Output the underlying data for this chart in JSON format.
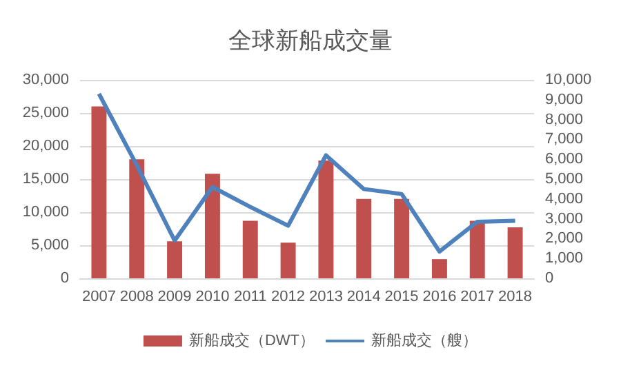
{
  "chart_data": {
    "type": "bar",
    "title": "全球新船成交量",
    "categories": [
      "2007",
      "2008",
      "2009",
      "2010",
      "2011",
      "2012",
      "2013",
      "2014",
      "2015",
      "2016",
      "2017",
      "2018"
    ],
    "series": [
      {
        "name": "新船成交（DWT）",
        "color": "#c0504d",
        "values": [
          26000,
          18000,
          5600,
          15800,
          8700,
          5400,
          17800,
          12000,
          12000,
          2900,
          8700,
          7700
        ]
      },
      {
        "name": "新船成交（艘）",
        "type": "line",
        "axis": "y2",
        "color": "#4f81bd",
        "values": [
          9300,
          5700,
          1900,
          4600,
          3600,
          2650,
          6200,
          4500,
          4250,
          1350,
          2850,
          2900
        ]
      }
    ],
    "ylim": [
      0,
      30000
    ],
    "yticks": [
      0,
      {
        "value": 5000,
        "label": "5,000"
      },
      {
        "value": 10000,
        "label": "10,000"
      },
      {
        "value": 15000,
        "label": "15,000"
      },
      {
        "value": 20000,
        "label": "20,000"
      },
      {
        "value": 25000,
        "label": "25,000"
      },
      {
        "value": 30000,
        "label": "30,000"
      }
    ],
    "y2lim": [
      0,
      10000
    ],
    "y2ticks": [
      0,
      {
        "value": 1000,
        "label": "1,000"
      },
      {
        "value": 2000,
        "label": "2,000"
      },
      {
        "value": 3000,
        "label": "3,000"
      },
      {
        "value": 4000,
        "label": "4,000"
      },
      {
        "value": 5000,
        "label": "5,000"
      },
      {
        "value": 6000,
        "label": "6,000"
      },
      {
        "value": 7000,
        "label": "7,000"
      },
      {
        "value": 8000,
        "label": "8,000"
      },
      {
        "value": 9000,
        "label": "9,000"
      },
      {
        "value": 10000,
        "label": "10,000"
      }
    ],
    "grid": "y",
    "legend": "bottom",
    "marker": "none"
  }
}
